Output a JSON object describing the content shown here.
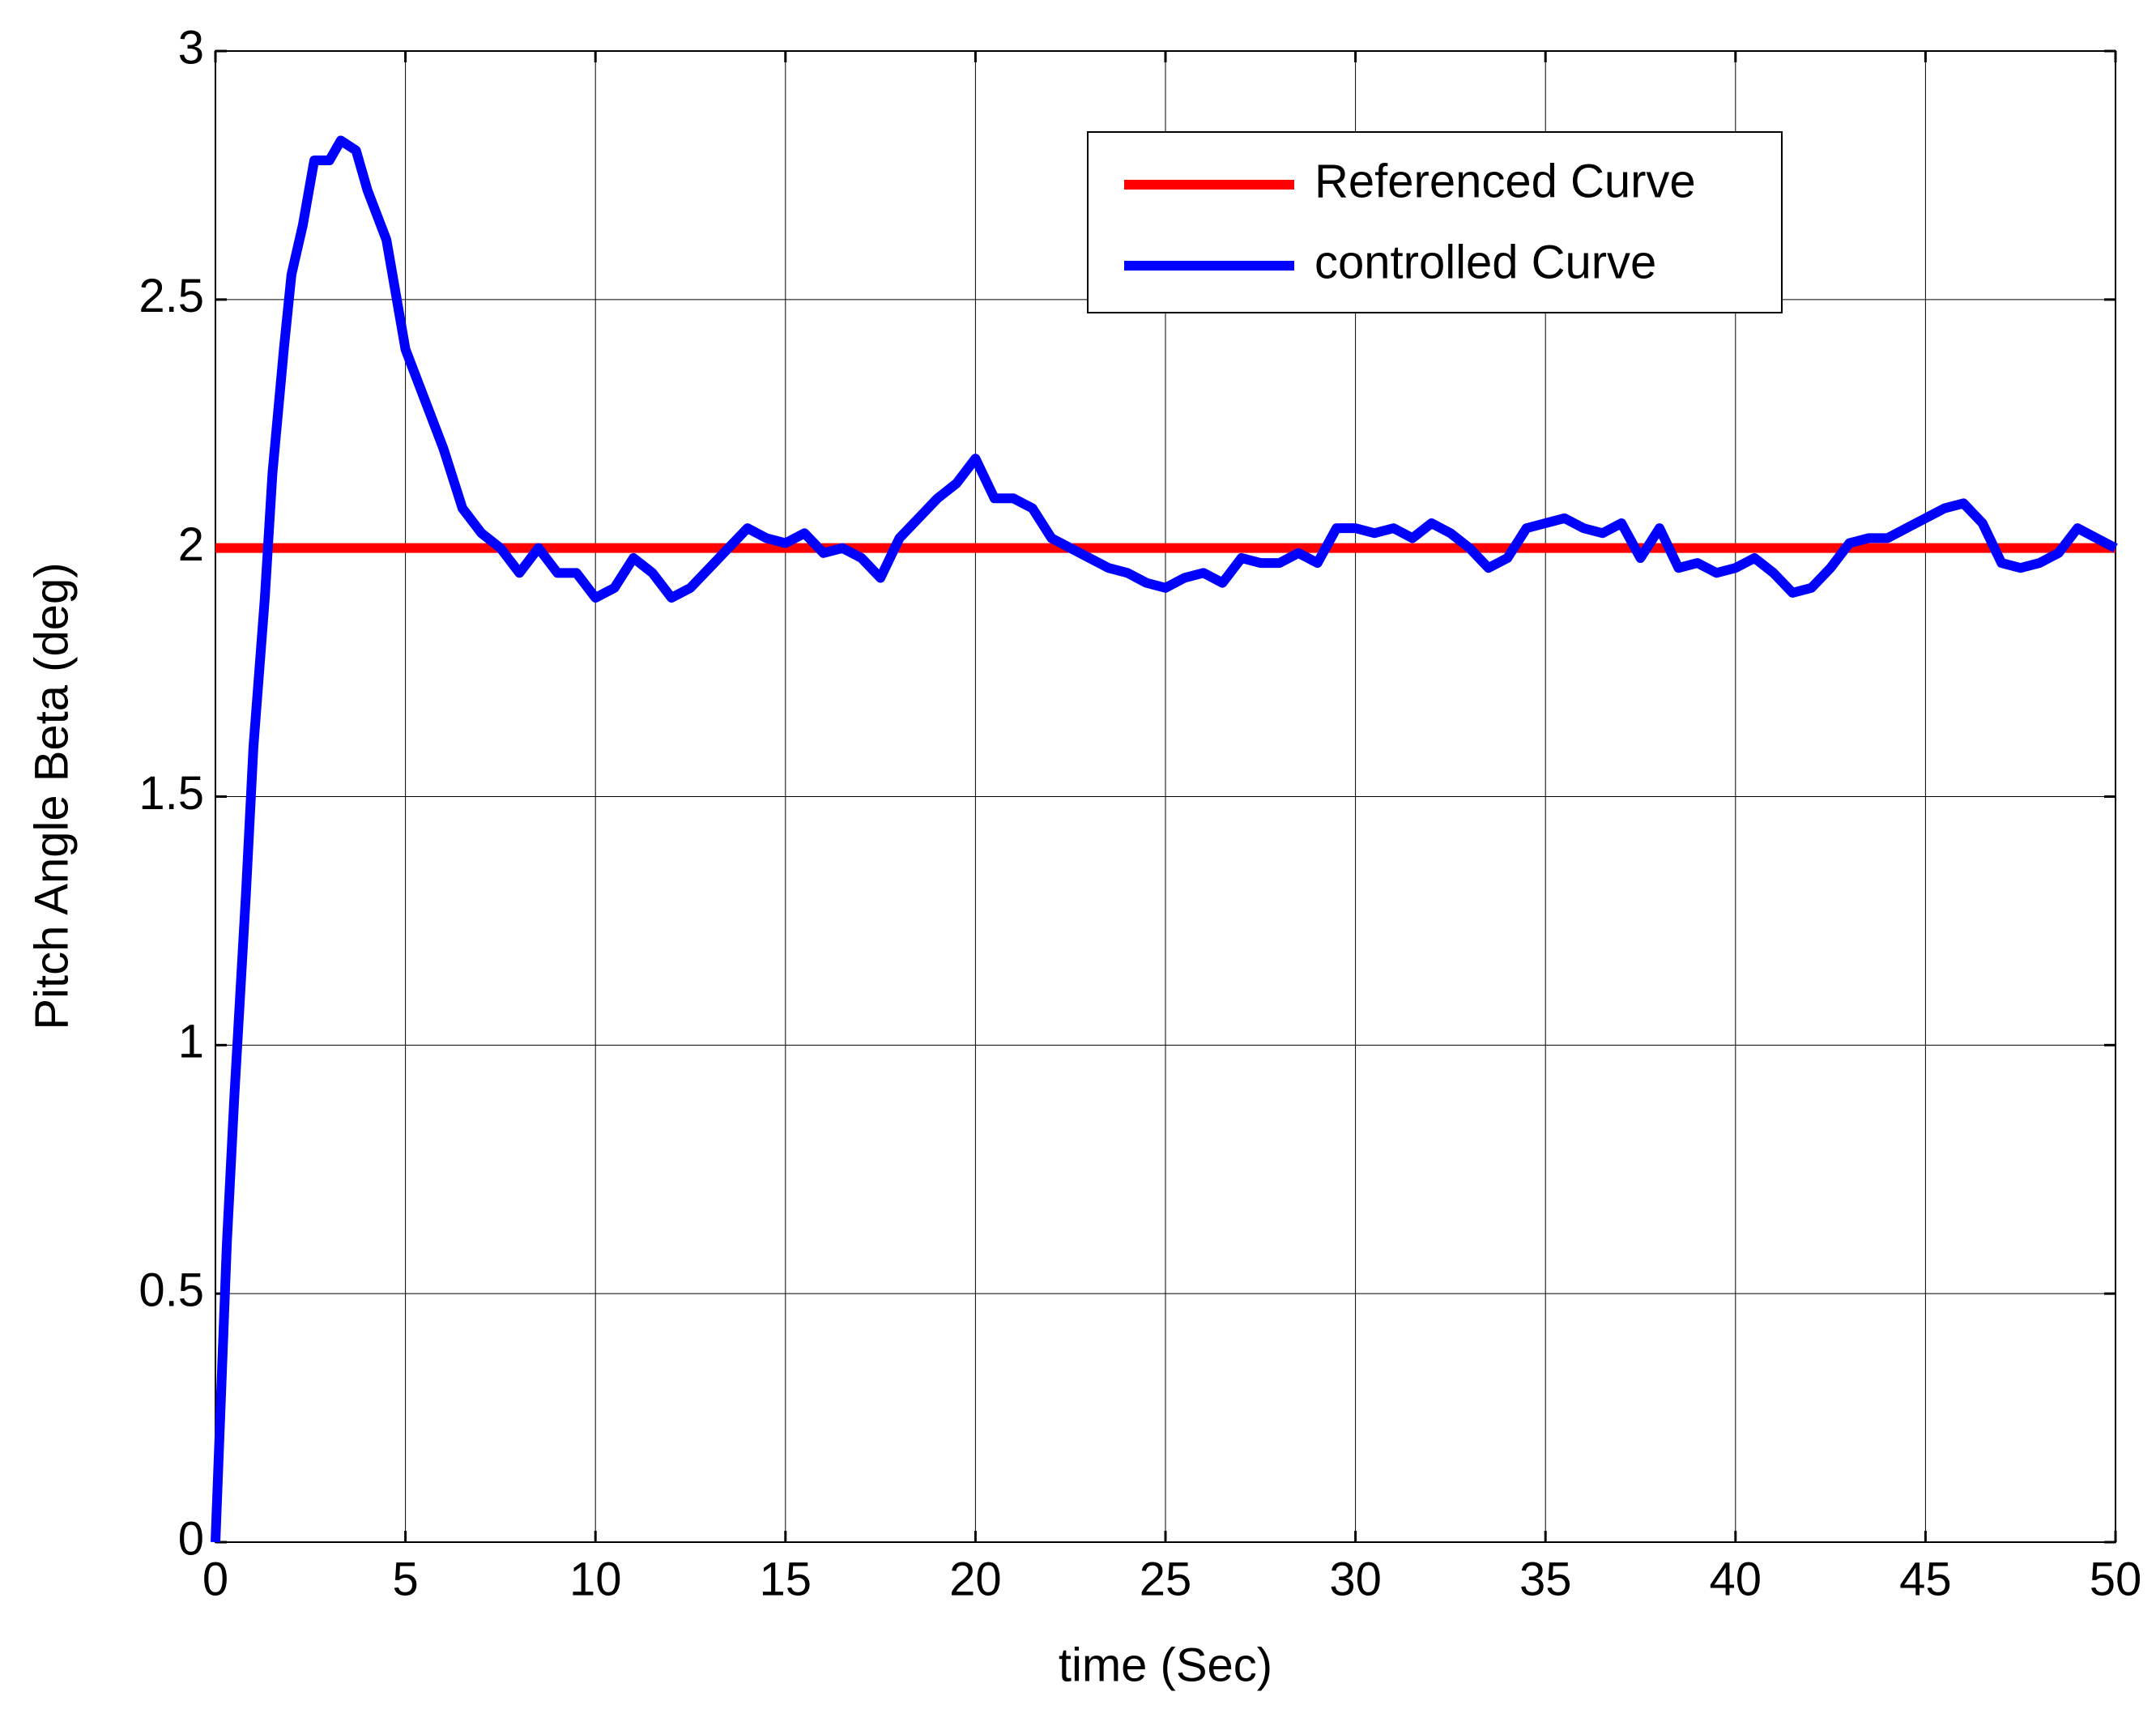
{
  "chart_data": {
    "type": "line",
    "xlabel": "time (Sec)",
    "ylabel": "Pitch Angle Beta (deg)",
    "xlim": [
      0,
      50
    ],
    "ylim": [
      0,
      3
    ],
    "xticks": [
      0,
      5,
      10,
      15,
      20,
      25,
      30,
      35,
      40,
      45,
      50
    ],
    "yticks": [
      0,
      0.5,
      1,
      1.5,
      2,
      2.5,
      3
    ],
    "grid": true,
    "legend": "upper right",
    "series": [
      {
        "name": "Referenced Curve",
        "color": "#ff0000",
        "x": [
          0,
          50
        ],
        "values": [
          2,
          2
        ]
      },
      {
        "name": "controlled Curve",
        "color": "#0000ff",
        "x": [
          0,
          0.1,
          0.3,
          0.5,
          0.8,
          1.0,
          1.3,
          1.5,
          1.8,
          2.0,
          2.3,
          2.6,
          3.0,
          3.3,
          3.7,
          4.0,
          4.5,
          5.0,
          5.5,
          6.0,
          6.5,
          7.0,
          7.5,
          8.0,
          8.5,
          9.0,
          9.5,
          10,
          10.5,
          11,
          11.5,
          12,
          12.5,
          13,
          13.5,
          14,
          14.5,
          15,
          15.5,
          16,
          16.5,
          17,
          17.5,
          18,
          18.5,
          19,
          19.5,
          20,
          20.5,
          21,
          21.5,
          22,
          22.5,
          23,
          23.5,
          24,
          24.5,
          25,
          25.5,
          26,
          26.5,
          27,
          27.5,
          28,
          28.5,
          29,
          29.5,
          30,
          30.5,
          31,
          31.5,
          32,
          32.5,
          33,
          33.5,
          34,
          34.5,
          35,
          35.5,
          36,
          36.5,
          37,
          37.5,
          38,
          38.5,
          39,
          39.5,
          40,
          40.5,
          41,
          41.5,
          42,
          42.5,
          43,
          43.5,
          44,
          44.5,
          45,
          45.5,
          46,
          46.5,
          47,
          47.5,
          48,
          48.5,
          49,
          49.5,
          50
        ],
        "values": [
          0,
          0.2,
          0.6,
          0.9,
          1.3,
          1.6,
          1.9,
          2.15,
          2.4,
          2.55,
          2.65,
          2.78,
          2.78,
          2.82,
          2.8,
          2.72,
          2.62,
          2.4,
          2.3,
          2.2,
          2.08,
          2.03,
          2.0,
          1.95,
          2.0,
          1.95,
          1.95,
          1.9,
          1.92,
          1.98,
          1.95,
          1.9,
          1.92,
          1.96,
          2.0,
          2.04,
          2.02,
          2.01,
          2.03,
          1.99,
          2.0,
          1.98,
          1.94,
          2.02,
          2.06,
          2.1,
          2.13,
          2.18,
          2.1,
          2.1,
          2.08,
          2.02,
          2.0,
          1.98,
          1.96,
          1.95,
          1.93,
          1.92,
          1.94,
          1.95,
          1.93,
          1.98,
          1.97,
          1.97,
          1.99,
          1.97,
          2.04,
          2.04,
          2.03,
          2.04,
          2.02,
          2.05,
          2.03,
          2.0,
          1.96,
          1.98,
          2.04,
          2.05,
          2.06,
          2.04,
          2.03,
          2.05,
          1.98,
          2.04,
          1.96,
          1.97,
          1.95,
          1.96,
          1.98,
          1.95,
          1.91,
          1.92,
          1.96,
          2.01,
          2.02,
          2.02,
          2.04,
          2.06,
          2.08,
          2.09,
          2.05,
          1.97,
          1.96,
          1.97,
          1.99,
          2.04,
          2.02,
          2.0
        ]
      }
    ]
  }
}
